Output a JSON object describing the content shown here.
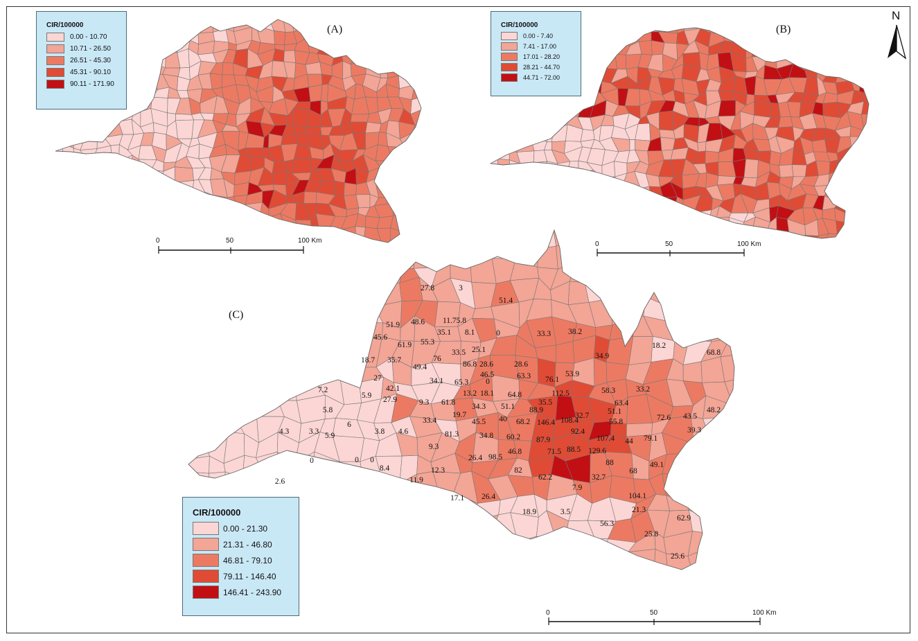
{
  "panels": [
    {
      "label": "(A)",
      "legend": {
        "title": "CIR/100000",
        "classes": [
          {
            "range": "0.00 - 10.70",
            "color": "#fbd6d4"
          },
          {
            "range": "10.71 - 26.50",
            "color": "#f3a596"
          },
          {
            "range": "26.51 - 45.30",
            "color": "#ec7a62"
          },
          {
            "range": "45.31 - 90.10",
            "color": "#e04b35"
          },
          {
            "range": "90.11 - 171.90",
            "color": "#c20f14"
          }
        ]
      },
      "scale": {
        "ticks": [
          "0",
          "50",
          "100 Km"
        ]
      }
    },
    {
      "label": "(B)",
      "legend": {
        "title": "CIR/100000",
        "classes": [
          {
            "range": "0.00 - 7.40",
            "color": "#fbd6d4"
          },
          {
            "range": "7.41 - 17.00",
            "color": "#f3a596"
          },
          {
            "range": "17.01 - 28.20",
            "color": "#ec7a62"
          },
          {
            "range": "28.21 - 44.70",
            "color": "#e04b35"
          },
          {
            "range": "44.71 - 72.00",
            "color": "#c20f14"
          }
        ]
      },
      "scale": {
        "ticks": [
          "0",
          "50",
          "100 Km"
        ]
      }
    },
    {
      "label": "(C)",
      "legend": {
        "title": "CIR/100000",
        "classes": [
          {
            "range": "0.00 - 21.30",
            "color": "#fbd6d4"
          },
          {
            "range": "21.31 - 46.80",
            "color": "#f3a596"
          },
          {
            "range": "46.81 - 79.10",
            "color": "#ec7a62"
          },
          {
            "range": "79.11 - 146.40",
            "color": "#e04b35"
          },
          {
            "range": "146.41 - 243.90",
            "color": "#c20f14"
          }
        ]
      },
      "scale": {
        "ticks": [
          "0",
          "50",
          "100 Km"
        ]
      },
      "district_values": [
        "27.8",
        "3",
        "51.4",
        "51.9",
        "48.6",
        "11.75.8",
        "35.1",
        "8.1",
        "0",
        "45.6",
        "61.9",
        "55.3",
        "33.3",
        "38.2",
        "33.5",
        "25.1",
        "18.7",
        "35.7",
        "49.4",
        "76",
        "28.6",
        "28.6",
        "86.8",
        "46.5",
        "34.9",
        "18.2",
        "68.8",
        "27",
        "34.1",
        "65.3",
        "0",
        "63.3",
        "76.1",
        "53.9",
        "42.1",
        "13.2",
        "18.1",
        "64.8",
        "35.5",
        "112.5",
        "58.3",
        "33.2",
        "7.2",
        "5.9",
        "27.9",
        "9.3",
        "61.8",
        "34.3",
        "88.9",
        "32.7",
        "63.4",
        "51.1",
        "5.8",
        "19.7",
        "51.1",
        "68.2",
        "146.4",
        "108.4",
        "72.6",
        "43.5",
        "48.2",
        "33.4",
        "45.5",
        "40",
        "55.8",
        "6",
        "4.3",
        "3.3",
        "5.9",
        "3.8",
        "4.6",
        "81.3",
        "34.8",
        "60.2",
        "92.4",
        "107.4",
        "44",
        "79.1",
        "39.3",
        "9.3",
        "87.9",
        "71.5",
        "88.5",
        "129.6",
        "26.4",
        "98.5",
        "46.8",
        "0",
        "0",
        "0",
        "8.4",
        "11.9",
        "12.3",
        "82",
        "62.2",
        "88",
        "68",
        "49.1",
        "2.6",
        "17.1",
        "26.4",
        "32.7",
        "7.9",
        "104.1",
        "18.9",
        "3.5",
        "21.3",
        "56.3",
        "62.9",
        "25.8",
        "25.6"
      ]
    }
  ],
  "north_arrow": {
    "letter": "N",
    "icon": "north-arrow-icon"
  }
}
